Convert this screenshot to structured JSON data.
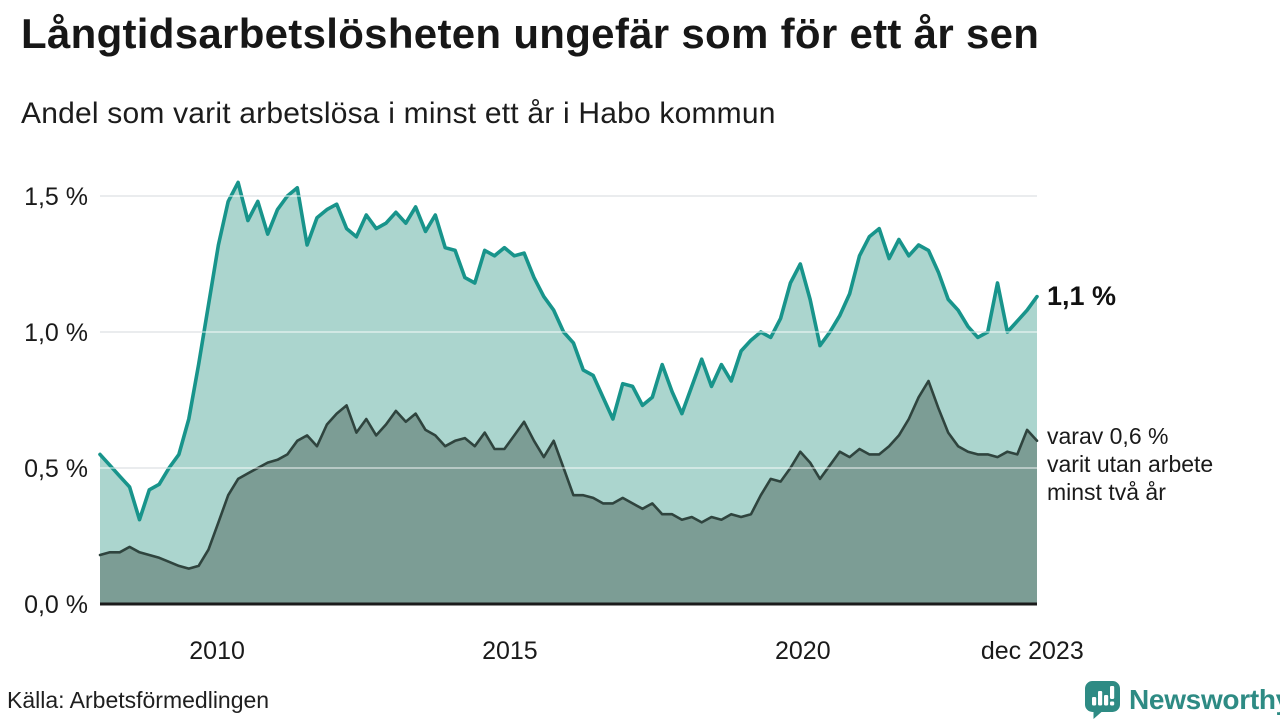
{
  "header": {
    "title": "Långtidsarbetslösheten ungefär som för ett år sen",
    "subtitle": "Andel som varit arbetslösa i minst ett år i Habo kommun"
  },
  "annotations": {
    "series1_end_label": "1,1 %",
    "series2_end_label": "varav 0,6 %\nvarit utan arbete\nminst två år"
  },
  "footer": {
    "source": "Källa: Arbetsförmedlingen",
    "brand": "Newsworthy"
  },
  "colors": {
    "series1_line": "#18948B",
    "series1_fill": "#ABD5CE",
    "series2_line": "#2F443E",
    "series2_fill": "#7C9D95",
    "gridline": "#D9DDE1",
    "axis_line": "#1b1b1b",
    "brand_teal": "#2E8B84",
    "text": "#1a1a1a"
  },
  "chart_data": {
    "type": "area",
    "title": "Långtidsarbetslösheten ungefär som för ett år sen",
    "subtitle": "Andel som varit arbetslösa i minst ett år i Habo kommun",
    "unit": "%",
    "grid": "horizontal",
    "x_domain": [
      2008,
      2024
    ],
    "ylim": [
      0,
      1.6
    ],
    "x_ticks": [
      {
        "label": "2010",
        "t": 2010
      },
      {
        "label": "2015",
        "t": 2015
      },
      {
        "label": "2020",
        "t": 2020
      },
      {
        "label": "dec 2023",
        "t": 2023.92
      }
    ],
    "y_ticks": [
      {
        "label": "0,0 %",
        "v": 0
      },
      {
        "label": "0,5 %",
        "v": 0.5
      },
      {
        "label": "1,0 %",
        "v": 1.0
      },
      {
        "label": "1,5 %",
        "v": 1.5
      }
    ],
    "series": [
      {
        "name": "Andel som varit arbetslösa i minst ett år",
        "end_value": 1.1,
        "end_label": "1,1 %",
        "line_color": "#18948B",
        "fill_color": "#ABD5CE",
        "values": [
          0.55,
          0.51,
          0.47,
          0.43,
          0.31,
          0.42,
          0.44,
          0.5,
          0.55,
          0.68,
          0.88,
          1.1,
          1.32,
          1.48,
          1.55,
          1.41,
          1.48,
          1.36,
          1.45,
          1.5,
          1.53,
          1.32,
          1.42,
          1.45,
          1.47,
          1.38,
          1.35,
          1.43,
          1.38,
          1.4,
          1.44,
          1.4,
          1.46,
          1.37,
          1.43,
          1.31,
          1.3,
          1.2,
          1.18,
          1.3,
          1.28,
          1.31,
          1.28,
          1.29,
          1.2,
          1.13,
          1.08,
          1.0,
          0.96,
          0.86,
          0.84,
          0.76,
          0.68,
          0.81,
          0.8,
          0.73,
          0.76,
          0.88,
          0.78,
          0.7,
          0.8,
          0.9,
          0.8,
          0.88,
          0.82,
          0.93,
          0.97,
          1.0,
          0.98,
          1.05,
          1.18,
          1.25,
          1.12,
          0.95,
          1.0,
          1.06,
          1.14,
          1.28,
          1.35,
          1.38,
          1.27,
          1.34,
          1.28,
          1.32,
          1.3,
          1.22,
          1.12,
          1.08,
          1.02,
          0.98,
          1.0,
          1.18,
          1.0,
          1.04,
          1.08,
          1.13
        ]
      },
      {
        "name": "varav utan arbete minst två år",
        "end_value": 0.6,
        "end_label": "varav 0,6 % varit utan arbete minst två år",
        "line_color": "#2F443E",
        "fill_color": "#7C9D95",
        "values": [
          0.18,
          0.19,
          0.19,
          0.21,
          0.19,
          0.18,
          0.17,
          0.155,
          0.14,
          0.13,
          0.14,
          0.2,
          0.3,
          0.4,
          0.46,
          0.48,
          0.5,
          0.52,
          0.53,
          0.55,
          0.6,
          0.62,
          0.58,
          0.66,
          0.7,
          0.73,
          0.63,
          0.68,
          0.62,
          0.66,
          0.71,
          0.67,
          0.7,
          0.64,
          0.62,
          0.58,
          0.6,
          0.61,
          0.58,
          0.63,
          0.57,
          0.57,
          0.62,
          0.67,
          0.6,
          0.54,
          0.6,
          0.5,
          0.4,
          0.4,
          0.39,
          0.37,
          0.37,
          0.39,
          0.37,
          0.35,
          0.37,
          0.33,
          0.33,
          0.31,
          0.32,
          0.3,
          0.32,
          0.31,
          0.33,
          0.32,
          0.33,
          0.4,
          0.46,
          0.45,
          0.5,
          0.56,
          0.52,
          0.46,
          0.51,
          0.56,
          0.54,
          0.57,
          0.55,
          0.55,
          0.58,
          0.62,
          0.68,
          0.76,
          0.82,
          0.72,
          0.63,
          0.58,
          0.56,
          0.55,
          0.55,
          0.54,
          0.56,
          0.55,
          0.64,
          0.6
        ]
      }
    ]
  }
}
